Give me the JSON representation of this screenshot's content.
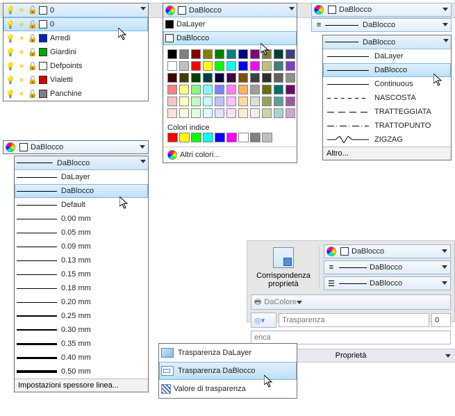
{
  "layers": {
    "header": "0",
    "items": [
      {
        "name": "0",
        "color": "#ffffff"
      },
      {
        "name": "Arredi",
        "color": "#0020c8"
      },
      {
        "name": "Giardini",
        "color": "#00a800"
      },
      {
        "name": "Defpoints",
        "color": "#ffffff"
      },
      {
        "name": "Vialetti",
        "color": "#d80000"
      },
      {
        "name": "Panchine",
        "color": "#808080"
      }
    ],
    "selected_index": 0
  },
  "lineweight": {
    "header": "DaBlocco",
    "items": [
      "DaBlocco",
      "DaLayer",
      "DaBlocco",
      "Default",
      "0.00 mm",
      "0.05 mm",
      "0.09 mm",
      "0.13 mm",
      "0.15 mm",
      "0.18 mm",
      "0.20 mm",
      "0.25 mm",
      "0.30 mm",
      "0.35 mm",
      "0.40 mm",
      "0.50 mm"
    ],
    "weights": [
      1,
      1,
      1,
      1,
      1,
      1,
      1,
      1,
      1,
      1.5,
      1.5,
      2,
      2.5,
      3,
      3.5,
      4
    ],
    "selected_index": 2,
    "footer": "Impostazioni spessore linea..."
  },
  "color_dd": {
    "header": "DaBlocco",
    "top_items": [
      "DaLayer",
      "DaBlocco"
    ],
    "selected_top": 1,
    "palette": [
      [
        "#000000",
        "#7f7f7f",
        "#800000",
        "#808000",
        "#008000",
        "#008080",
        "#000080",
        "#800080",
        "#7f7f3f",
        "#003f3f",
        "#3f3f7f"
      ],
      [
        "#ffffff",
        "#c0c0c0",
        "#ff0000",
        "#ffff00",
        "#00ff00",
        "#00ffff",
        "#0000ff",
        "#ff00ff",
        "#bfbf7f",
        "#3f7f7f",
        "#7f3fbf"
      ],
      [
        "#400000",
        "#404000",
        "#004000",
        "#004040",
        "#000040",
        "#400040",
        "#805000",
        "#3f3f3f",
        "#2f2f2f",
        "#5f5f5f",
        "#8f8f8f"
      ],
      [
        "#ff8080",
        "#ffff80",
        "#80ff80",
        "#80ffff",
        "#8080ff",
        "#ff80ff",
        "#ffb060",
        "#9f9f9f",
        "#6f6f00",
        "#006f6f",
        "#6f006f"
      ],
      [
        "#ffc0c0",
        "#ffffc0",
        "#c0ffc0",
        "#c0ffff",
        "#c0c0ff",
        "#ffc0ff",
        "#ffd8a0",
        "#dcdcdc",
        "#9aa05a",
        "#5aa09a",
        "#9a5aa0"
      ],
      [
        "#ffe0e0",
        "#ffffe0",
        "#e0ffe0",
        "#e0ffff",
        "#e0e0ff",
        "#ffe0ff",
        "#ffecd0",
        "#efefef",
        "#cfd4a5",
        "#a5d4cf",
        "#cfa5d4"
      ]
    ],
    "index_label": "Colori indice",
    "index_colors": [
      "#ff0000",
      "#ffff00",
      "#00ff00",
      "#00ffff",
      "#0000ff",
      "#ff00ff",
      "#ffffff",
      "#808080",
      "#c0c0c0"
    ],
    "more": "Altri colori..."
  },
  "linetype": {
    "header": "DaBlocco",
    "row2": "DaBlocco",
    "hdr2": "DaBlocco",
    "items": [
      {
        "label": "DaLayer",
        "style": "solid"
      },
      {
        "label": "DaBlocco",
        "style": "solid"
      },
      {
        "label": "Continuous",
        "style": "solid"
      },
      {
        "label": "NASCOSTA",
        "style": "dash-short"
      },
      {
        "label": "TRATTEGGIATA",
        "style": "dash-long"
      },
      {
        "label": "TRATTOPUNTO",
        "style": "dashdot"
      },
      {
        "label": "ZIGZAG",
        "style": "zig"
      }
    ],
    "selected_index": 1,
    "footer": "Altro..."
  },
  "prop_panel": {
    "corr": "Corrispondenza proprietà",
    "minidd1": "DaBlocco",
    "minidd2": "DaBlocco",
    "minidd3": "DaBlocco",
    "dacolore": "DaColore",
    "trasp_placeholder": "Trasparenza",
    "trasp_value": "0",
    "title": "Proprietà"
  },
  "trasp_menu": {
    "items": [
      "Trasparenza DaLayer",
      "Trasparenza DaBlocco",
      "Valore di trasparenza"
    ],
    "selected_index": 1
  },
  "search_placeholder": "enca"
}
